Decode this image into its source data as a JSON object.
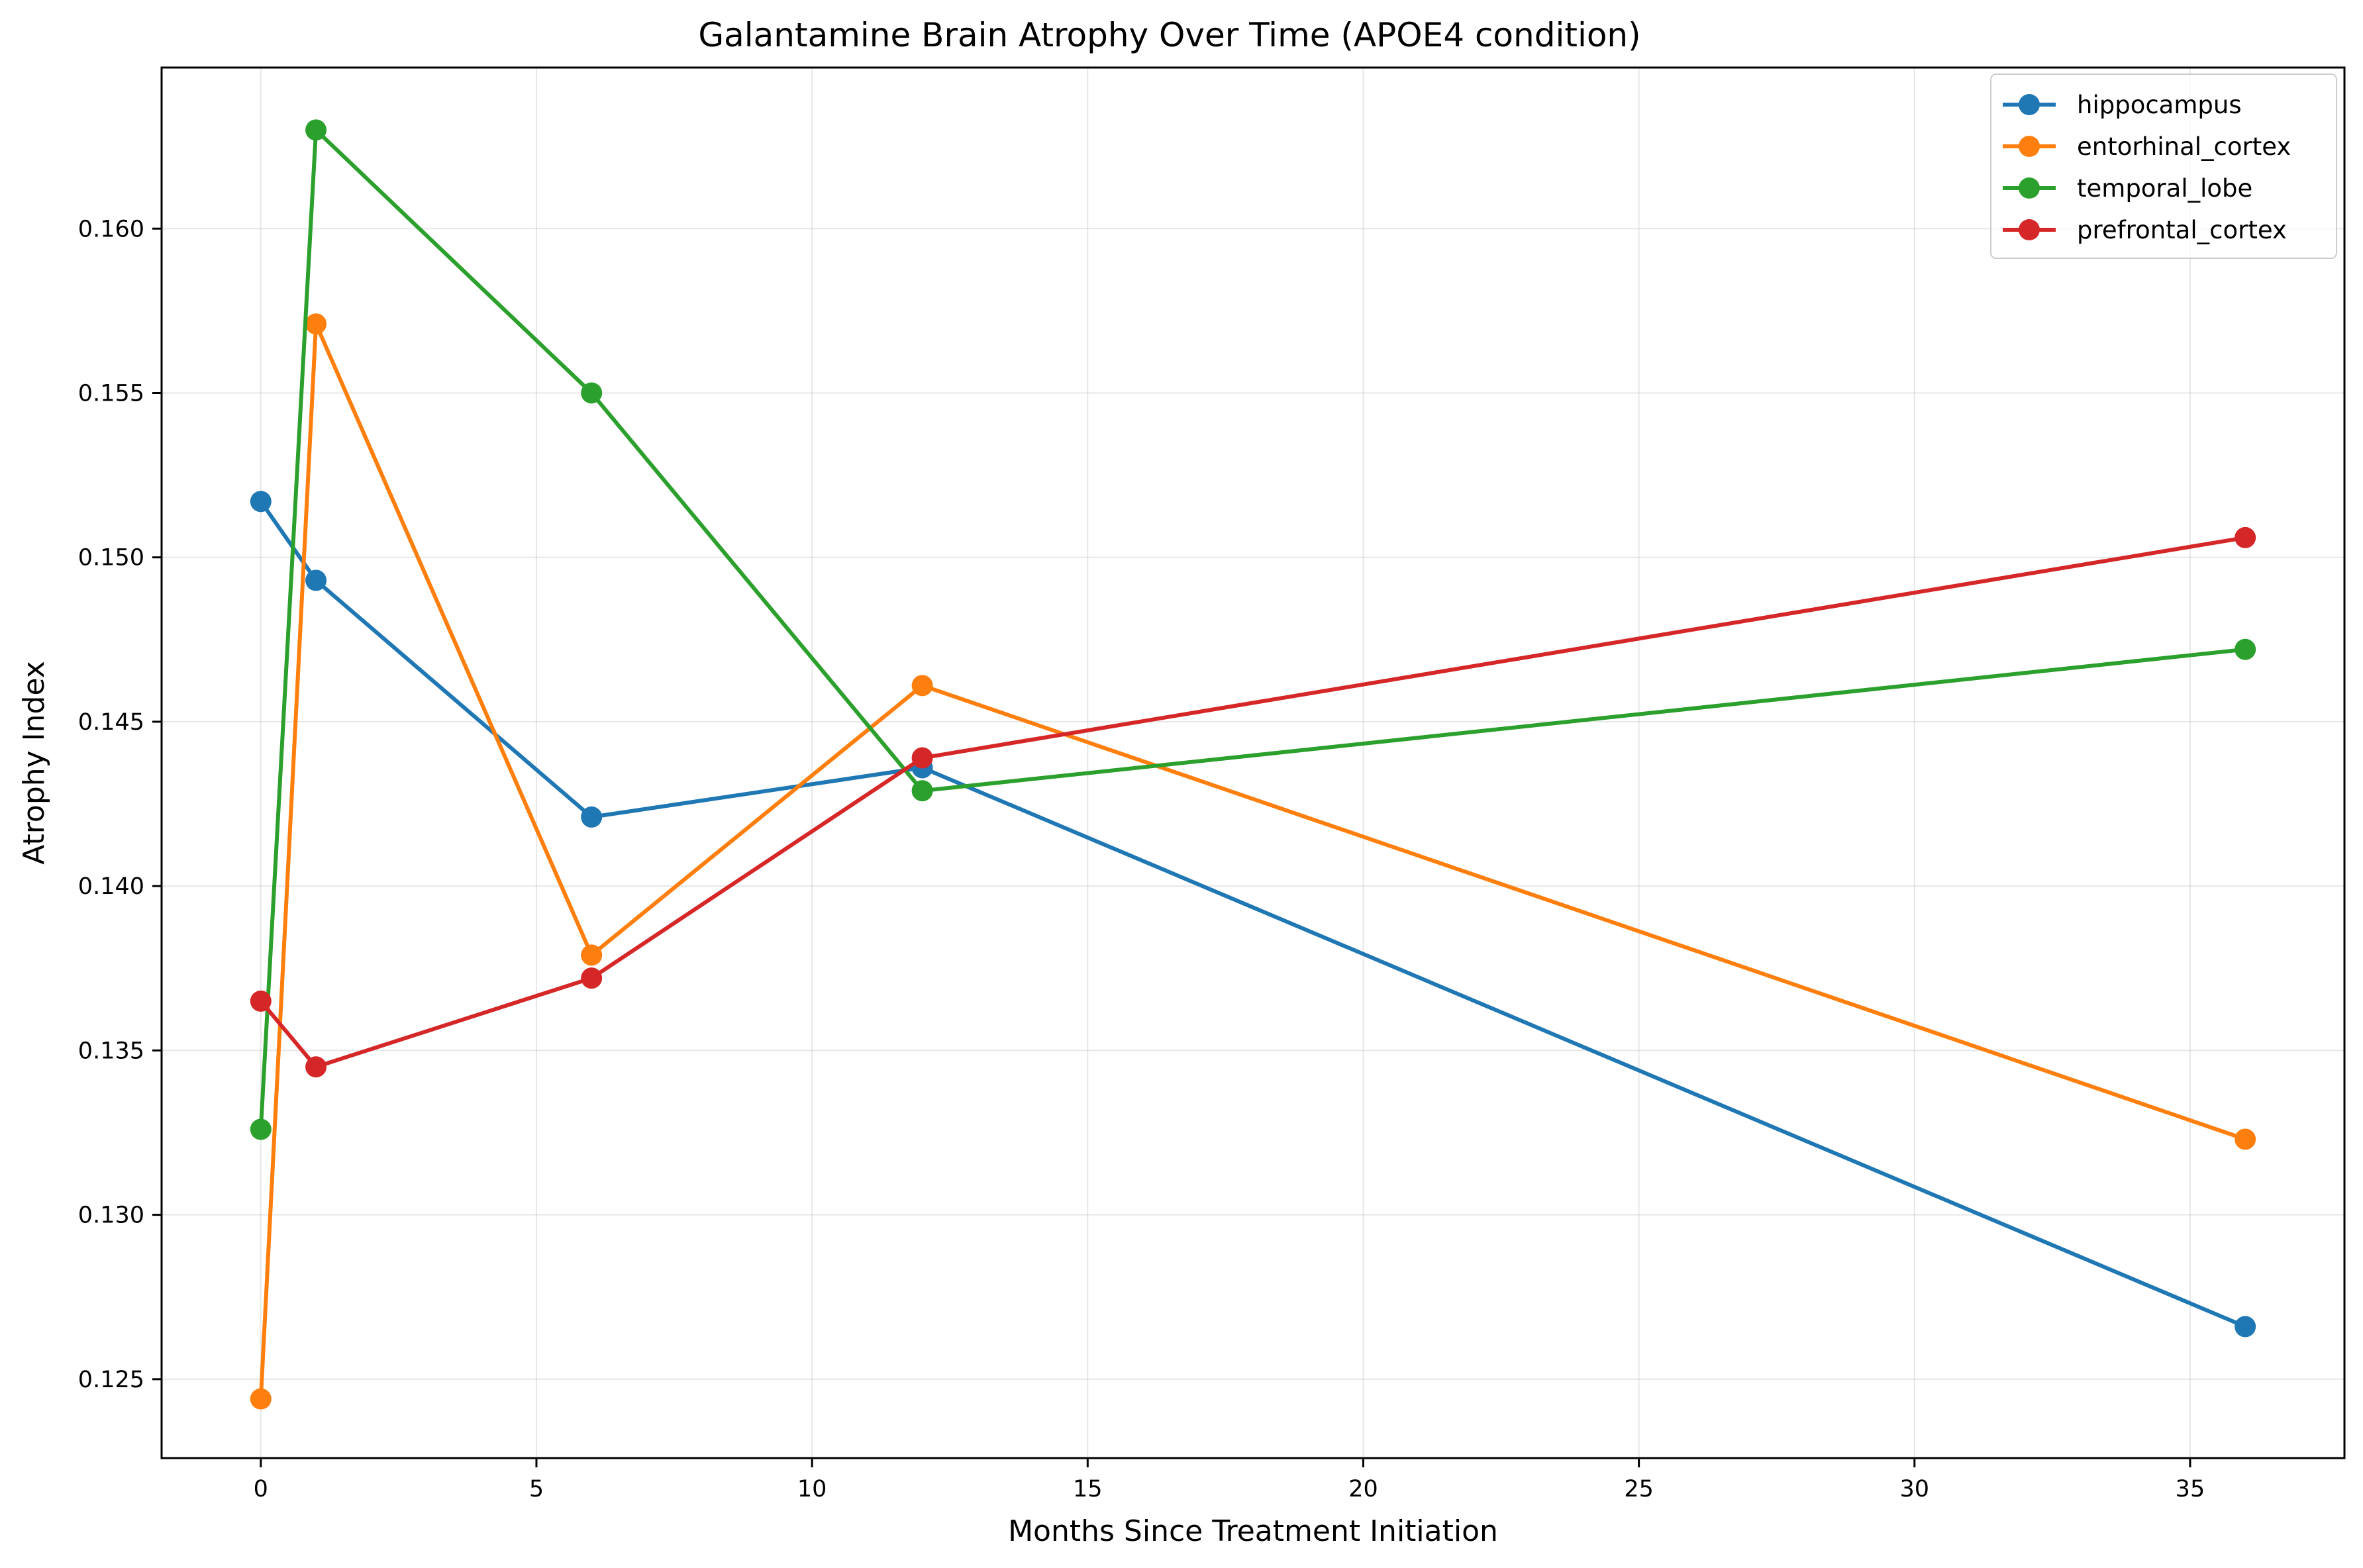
{
  "chart_data": {
    "type": "line",
    "title": "Galantamine Brain Atrophy Over Time (APOE4 condition)",
    "xlabel": "Months Since Treatment Initiation",
    "ylabel": "Atrophy Index",
    "x": [
      0,
      1,
      6,
      12,
      36
    ],
    "xlim": [
      -1.8,
      37.8
    ],
    "ylim": [
      0.1226,
      0.1649
    ],
    "xticks": [
      0,
      5,
      10,
      15,
      20,
      25,
      30,
      35
    ],
    "xtick_labels": [
      "0",
      "5",
      "10",
      "15",
      "20",
      "25",
      "30",
      "35"
    ],
    "yticks": [
      0.125,
      0.13,
      0.135,
      0.14,
      0.145,
      0.15,
      0.155,
      0.16
    ],
    "ytick_labels": [
      "0.125",
      "0.130",
      "0.135",
      "0.140",
      "0.145",
      "0.150",
      "0.155",
      "0.160"
    ],
    "grid": true,
    "legend_position": "top-right",
    "series": [
      {
        "name": "hippocampus",
        "color": "#1f77b4",
        "values": [
          0.1517,
          0.1493,
          0.1421,
          0.1436,
          0.1266
        ]
      },
      {
        "name": "entorhinal_cortex",
        "color": "#ff7f0e",
        "values": [
          0.1244,
          0.1571,
          0.1379,
          0.1461,
          0.1323
        ]
      },
      {
        "name": "temporal_lobe",
        "color": "#2ca02c",
        "values": [
          0.1326,
          0.163,
          0.155,
          0.1429,
          0.1472
        ]
      },
      {
        "name": "prefrontal_cortex",
        "color": "#d62728",
        "values": [
          0.1365,
          0.1345,
          0.1372,
          0.1439,
          0.1506
        ]
      }
    ]
  }
}
